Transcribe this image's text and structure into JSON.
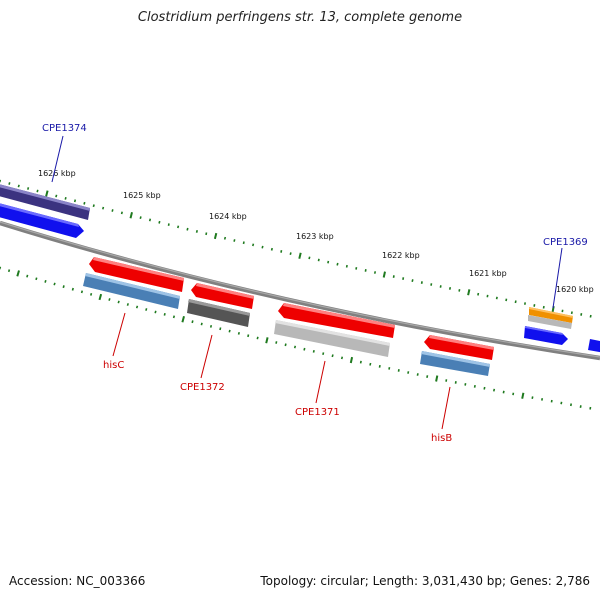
{
  "title": "Clostridium perfringens str. 13, complete genome",
  "footer": {
    "accession": "Accession: NC_003366",
    "stats": "Topology: circular; Length: 3,031,430 bp; Genes: 2,786"
  },
  "scale": {
    "unit": "kbp",
    "ticks": [
      "1626 kbp",
      "1625 kbp",
      "1624 kbp",
      "1623 kbp",
      "1622 kbp",
      "1621 kbp",
      "1620 kbp"
    ]
  },
  "genes": [
    {
      "label": "CPE1374",
      "strand": "forward",
      "color": "#3b3380",
      "label_color": "#1a1aa8"
    },
    {
      "label": "",
      "strand": "forward",
      "color": "#1010ee"
    },
    {
      "label": "hisC",
      "strand": "reverse",
      "color": "#ee0000",
      "label_color": "#cc0000"
    },
    {
      "label": "",
      "strand": "reverse",
      "color": "#4a7fb5"
    },
    {
      "label": "CPE1372",
      "strand": "reverse",
      "color": "#ee0000",
      "label_color": "#cc0000"
    },
    {
      "label": "",
      "strand": "reverse",
      "color": "#555555"
    },
    {
      "label": "CPE1371",
      "strand": "reverse",
      "color": "#ee0000",
      "label_color": "#cc0000"
    },
    {
      "label": "",
      "strand": "reverse",
      "color": "#b8b8b8"
    },
    {
      "label": "hisB",
      "strand": "reverse",
      "color": "#ee0000",
      "label_color": "#cc0000"
    },
    {
      "label": "",
      "strand": "reverse",
      "color": "#4a7fb5"
    },
    {
      "label": "CPE1369",
      "strand": "forward",
      "color": "#f09000",
      "label_color": "#1a1aa8"
    },
    {
      "label": "",
      "strand": "forward",
      "color": "#b8b8b8"
    },
    {
      "label": "",
      "strand": "forward",
      "color": "#1010ee"
    },
    {
      "label": "",
      "strand": "forward",
      "color": "#1010ee"
    }
  ],
  "colors": {
    "backbone": "#808080",
    "ticks": "#1f7a1f"
  }
}
